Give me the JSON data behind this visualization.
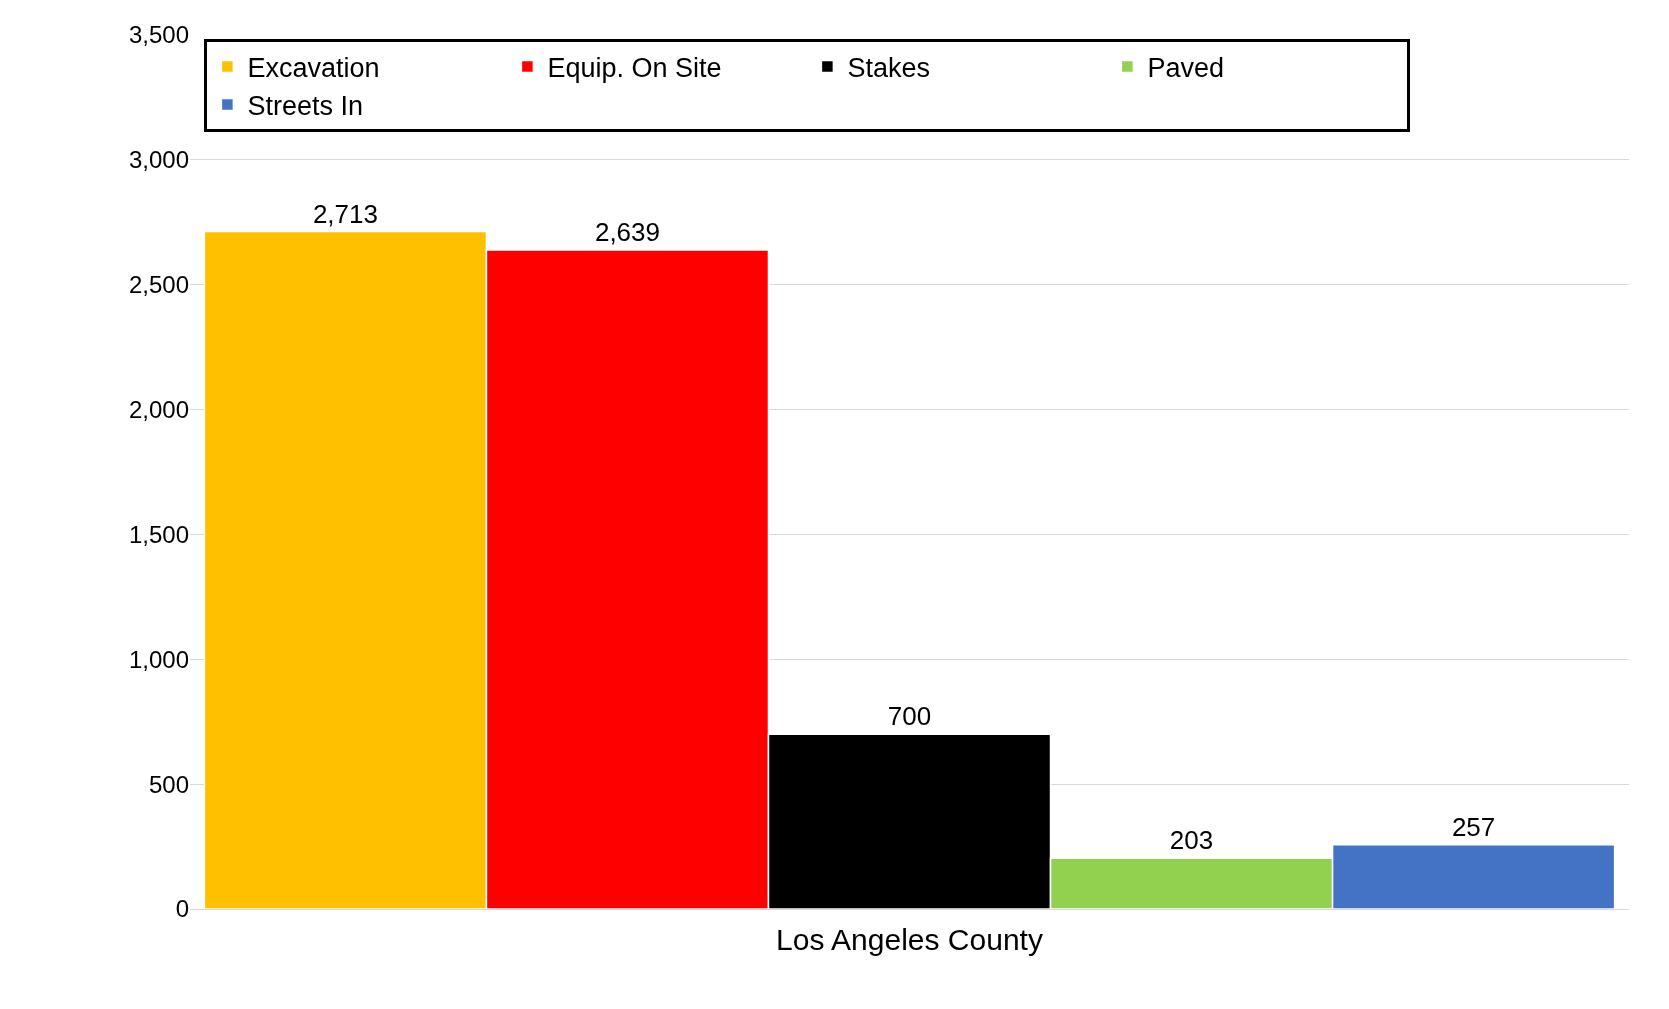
{
  "chart_data": {
    "type": "bar",
    "xlabel": "Los Angeles County",
    "categories": [
      null
    ],
    "series": [
      {
        "name": "Excavation",
        "color": "#ffc000",
        "values": [
          2713
        ],
        "value_labels": [
          "2,713"
        ]
      },
      {
        "name": "Equip. On Site",
        "color": "#ff0000",
        "values": [
          2639
        ],
        "value_labels": [
          "2,639"
        ]
      },
      {
        "name": "Stakes",
        "color": "#000000",
        "values": [
          700
        ],
        "value_labels": [
          "700"
        ]
      },
      {
        "name": "Paved",
        "color": "#92d050",
        "values": [
          203
        ],
        "value_labels": [
          "203"
        ]
      },
      {
        "name": "Streets In",
        "color": "#4472c4",
        "values": [
          257
        ],
        "value_labels": [
          "257"
        ]
      }
    ],
    "ylim": [
      0,
      3500
    ],
    "yticks": [
      0,
      {
        "value": 500,
        "label": "500"
      },
      {
        "value": 1000,
        "label": "1,000"
      },
      {
        "value": 1500,
        "label": "1,500"
      },
      {
        "value": 2000,
        "label": "2,000"
      },
      {
        "value": 2500,
        "label": "2,500"
      },
      {
        "value": 3000,
        "label": "3,000"
      },
      {
        "value": 3500,
        "label": "3,500"
      }
    ],
    "grid": "y",
    "legend": "top"
  }
}
